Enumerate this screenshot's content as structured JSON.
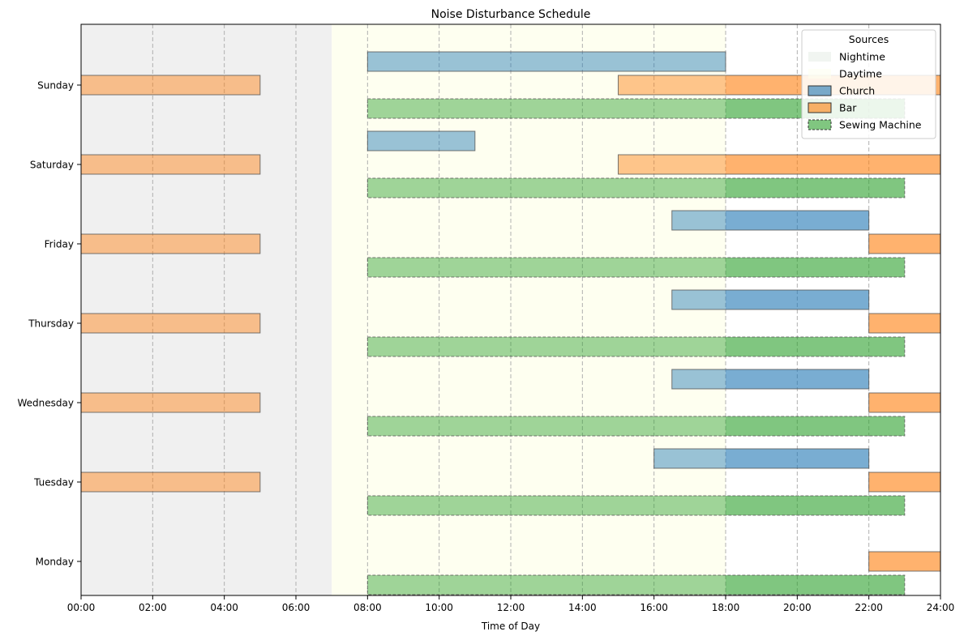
{
  "chart_data": {
    "type": "bar",
    "orientation": "horizontal-gantt",
    "title": "Noise Disturbance Schedule",
    "xlabel": "Time of Day",
    "ylabel": "",
    "xlim": [
      0,
      24
    ],
    "x_ticks": [
      0,
      2,
      4,
      6,
      8,
      10,
      12,
      14,
      16,
      18,
      20,
      22,
      24
    ],
    "x_tick_labels": [
      "00:00",
      "02:00",
      "04:00",
      "06:00",
      "08:00",
      "10:00",
      "12:00",
      "14:00",
      "16:00",
      "18:00",
      "20:00",
      "22:00",
      "24:00"
    ],
    "days": [
      "Monday",
      "Tuesday",
      "Wednesday",
      "Thursday",
      "Friday",
      "Saturday",
      "Sunday"
    ],
    "grid": "x-dashed",
    "legend": {
      "title": "Sources",
      "placement": "top-right",
      "entries": [
        {
          "label": "Nightime",
          "key": "night"
        },
        {
          "label": "Daytime",
          "key": "day"
        },
        {
          "label": "Church",
          "key": "church"
        },
        {
          "label": "Bar",
          "key": "bar"
        },
        {
          "label": "Sewing Machine",
          "key": "sewing"
        }
      ]
    },
    "periods": {
      "night": [
        [
          0,
          7
        ]
      ],
      "day": [
        [
          7,
          18
        ]
      ]
    },
    "colors": {
      "night": "#f0f0f0",
      "day": "#fefff0",
      "church": "#1f77b4",
      "bar": "#ff7f0e",
      "sewing": "#2ca02c",
      "edge": "#555555"
    },
    "series": [
      {
        "name": "Church",
        "key": "church",
        "offset": 1,
        "intervals": [
          {
            "day": "Tuesday",
            "start": 16,
            "end": 22
          },
          {
            "day": "Wednesday",
            "start": 16.5,
            "end": 22
          },
          {
            "day": "Thursday",
            "start": 16.5,
            "end": 22
          },
          {
            "day": "Friday",
            "start": 16.5,
            "end": 22
          },
          {
            "day": "Saturday",
            "start": 8,
            "end": 11
          },
          {
            "day": "Sunday",
            "start": 8,
            "end": 18
          }
        ]
      },
      {
        "name": "Bar",
        "key": "bar",
        "offset": 0,
        "intervals": [
          {
            "day": "Monday",
            "start": 22,
            "end": 24
          },
          {
            "day": "Tuesday",
            "start": 0,
            "end": 5
          },
          {
            "day": "Tuesday",
            "start": 22,
            "end": 24
          },
          {
            "day": "Wednesday",
            "start": 0,
            "end": 5
          },
          {
            "day": "Wednesday",
            "start": 22,
            "end": 24
          },
          {
            "day": "Thursday",
            "start": 0,
            "end": 5
          },
          {
            "day": "Thursday",
            "start": 22,
            "end": 24
          },
          {
            "day": "Friday",
            "start": 0,
            "end": 5
          },
          {
            "day": "Friday",
            "start": 22,
            "end": 24
          },
          {
            "day": "Saturday",
            "start": 0,
            "end": 5
          },
          {
            "day": "Saturday",
            "start": 15,
            "end": 24
          },
          {
            "day": "Sunday",
            "start": 0,
            "end": 5
          },
          {
            "day": "Sunday",
            "start": 15,
            "end": 24
          }
        ]
      },
      {
        "name": "Sewing Machine",
        "key": "sewing",
        "offset": -1,
        "intervals": [
          {
            "day": "Monday",
            "start": 8,
            "end": 23
          },
          {
            "day": "Tuesday",
            "start": 8,
            "end": 23
          },
          {
            "day": "Wednesday",
            "start": 8,
            "end": 23
          },
          {
            "day": "Thursday",
            "start": 8,
            "end": 23
          },
          {
            "day": "Friday",
            "start": 8,
            "end": 23
          },
          {
            "day": "Saturday",
            "start": 8,
            "end": 23
          },
          {
            "day": "Sunday",
            "start": 8,
            "end": 23
          }
        ]
      }
    ]
  }
}
